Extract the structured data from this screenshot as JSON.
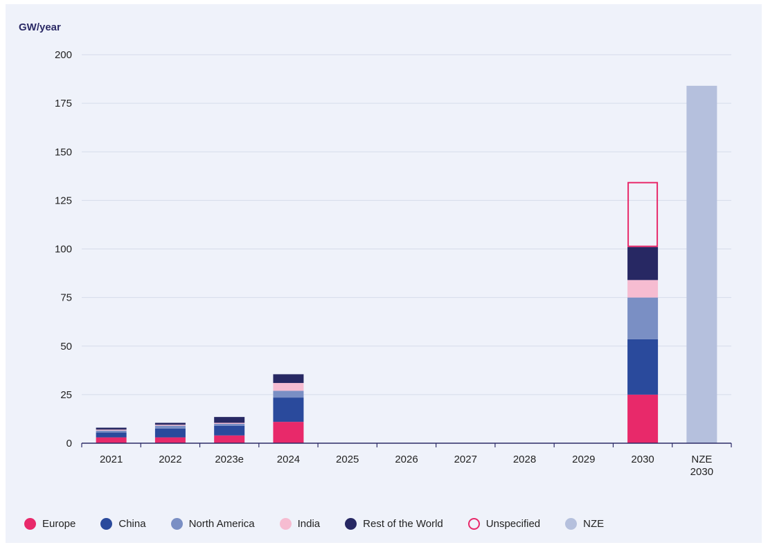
{
  "chart_data": {
    "type": "bar",
    "stacked": true,
    "ylabel": "GW/year",
    "ylim": [
      0,
      200
    ],
    "yticks": [
      0,
      25,
      50,
      75,
      100,
      125,
      150,
      175,
      200
    ],
    "grid": true,
    "legend_position": "bottom",
    "categories": [
      "2021",
      "2022",
      "2023e",
      "2024",
      "2025",
      "2026",
      "2027",
      "2028",
      "2029",
      "2030",
      "NZE 2030"
    ],
    "series": [
      {
        "name": "Europe",
        "color": "#e8296a",
        "style": "fill",
        "values": [
          3,
          3,
          4,
          11,
          0,
          0,
          0,
          0,
          0,
          25,
          0
        ]
      },
      {
        "name": "China",
        "color": "#2a4a9c",
        "style": "fill",
        "values": [
          2.5,
          4.5,
          5,
          12.5,
          0,
          0,
          0,
          0,
          0,
          28.5,
          0
        ]
      },
      {
        "name": "North America",
        "color": "#7a8fc4",
        "style": "fill",
        "values": [
          1,
          1.5,
          1,
          3.5,
          0,
          0,
          0,
          0,
          0,
          21.5,
          0
        ]
      },
      {
        "name": "India",
        "color": "#f6bcd1",
        "style": "fill",
        "values": [
          0.5,
          0.5,
          0.5,
          4,
          0,
          0,
          0,
          0,
          0,
          9,
          0
        ]
      },
      {
        "name": "Rest of the World",
        "color": "#272863",
        "style": "fill",
        "values": [
          1,
          1,
          3,
          4.5,
          0,
          0,
          0,
          0,
          0,
          17,
          0
        ]
      },
      {
        "name": "Unspecified",
        "color": "#e8296a",
        "style": "outline",
        "values": [
          0,
          0,
          0,
          0,
          0,
          0,
          0,
          0,
          0,
          33.5,
          0
        ]
      },
      {
        "name": "NZE",
        "color": "#b5c0dd",
        "style": "fill",
        "values": [
          0,
          0,
          0,
          0,
          0,
          0,
          0,
          0,
          0,
          0,
          184
        ]
      }
    ]
  }
}
